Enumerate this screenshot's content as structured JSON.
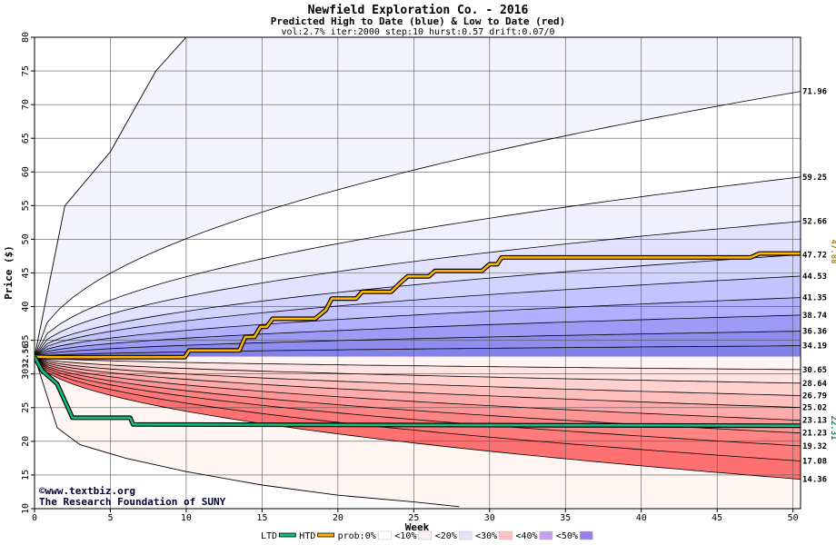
{
  "chart_data": {
    "type": "area",
    "title": "Newfield Exploration Co. - 2016",
    "subtitle": "Predicted High to Date (blue) &  Low to Date (red)",
    "params": "vol:2.7% iter:2000 step:10 hurst:0.57 drift:0.07/0",
    "xlabel": "Week",
    "ylabel": "Price ($)",
    "xlim": [
      0,
      50.5
    ],
    "ylim": [
      10,
      80
    ],
    "xticks": [
      0,
      5,
      10,
      15,
      20,
      25,
      30,
      35,
      40,
      45,
      50
    ],
    "yticks": [
      10,
      15,
      20,
      25,
      30,
      35,
      40,
      45,
      50,
      55,
      60,
      65,
      70,
      75,
      80
    ],
    "grid": true,
    "start_price": 32.56,
    "start_label": "32.56",
    "high_bands_end": [
      34.19,
      36.36,
      38.74,
      41.35,
      44.53,
      47.72,
      52.66,
      59.25,
      71.96
    ],
    "high_band_labels": [
      "34.19",
      "36.36",
      "38.74",
      "41.35",
      "44.53",
      "47.72",
      "52.66",
      "59.25",
      "71.96"
    ],
    "low_bands_end": [
      30.65,
      28.64,
      26.79,
      25.02,
      23.13,
      21.23,
      19.32,
      17.08,
      14.36
    ],
    "low_band_labels": [
      "30.65",
      "28.64",
      "26.79",
      "25.02",
      "23.13",
      "21.23",
      "19.32",
      "17.08",
      "14.36"
    ],
    "high_to_date_end": 47.88,
    "high_to_date_label": "47.88",
    "low_to_date_end": 22.31,
    "low_to_date_label": "22.31",
    "outer_high_curve": [
      [
        0,
        32.56
      ],
      [
        2,
        55
      ],
      [
        5,
        63
      ],
      [
        8,
        75
      ],
      [
        10,
        80
      ]
    ],
    "outer_low_curve": [
      [
        0,
        32.56
      ],
      [
        1.5,
        22
      ],
      [
        3,
        19.5
      ],
      [
        6,
        17.5
      ],
      [
        10,
        15.5
      ],
      [
        15,
        13.5
      ],
      [
        20,
        12
      ],
      [
        25,
        11
      ],
      [
        28,
        10.3
      ]
    ],
    "high_to_date_series": [
      [
        0,
        32.56
      ],
      [
        1,
        32.5
      ],
      [
        9.9,
        32.5
      ],
      [
        10.2,
        33.5
      ],
      [
        13.5,
        33.5
      ],
      [
        13.9,
        35.5
      ],
      [
        14.5,
        35.5
      ],
      [
        14.9,
        37
      ],
      [
        15.3,
        37
      ],
      [
        15.7,
        38.2
      ],
      [
        18.5,
        38.2
      ],
      [
        19.2,
        39.5
      ],
      [
        19.6,
        41.2
      ],
      [
        21.2,
        41.2
      ],
      [
        21.6,
        42.2
      ],
      [
        23.5,
        42.2
      ],
      [
        24.1,
        43.5
      ],
      [
        24.6,
        44.5
      ],
      [
        26,
        44.5
      ],
      [
        26.4,
        45.3
      ],
      [
        29.5,
        45.3
      ],
      [
        30,
        46.3
      ],
      [
        30.5,
        46.3
      ],
      [
        30.8,
        47.3
      ],
      [
        47.2,
        47.3
      ],
      [
        47.8,
        47.88
      ],
      [
        50.5,
        47.88
      ]
    ],
    "low_to_date_series": [
      [
        0,
        32.56
      ],
      [
        0.5,
        30.5
      ],
      [
        1,
        29.5
      ],
      [
        1.5,
        28.5
      ],
      [
        2,
        26
      ],
      [
        2.5,
        23.5
      ],
      [
        6.3,
        23.5
      ],
      [
        6.5,
        22.5
      ],
      [
        50.5,
        22.31
      ]
    ],
    "high_band_colors": [
      "#ffffff",
      "#f0f0ff",
      "#e2e2ff",
      "#d3d3ff",
      "#c3c3ff",
      "#b0b0ff",
      "#9c9cf6",
      "#8e8ef0",
      "#8282ea"
    ],
    "low_band_colors": [
      "#fff4f2",
      "#ffe4e2",
      "#ffd2d0",
      "#ffbfbd",
      "#ffabab",
      "#ff9696",
      "#ff8585",
      "#ff7a7a",
      "#ff7070"
    ],
    "high_to_date_color": "#ffb400",
    "low_to_date_color": "#10c080",
    "credit_line1": "www.textbiz.org",
    "credit_line2": "The Research Foundation of SUNY",
    "legend": [
      {
        "label": "LTD",
        "color": "#10c080",
        "kind": "line"
      },
      {
        "label": "HTD",
        "color": "#ffb400",
        "kind": "line"
      },
      {
        "label": "prob:0%",
        "color": "#ffffff",
        "kind": "swatch"
      },
      {
        "label": "<10%",
        "color": "#fff0f0",
        "kind": "swatch"
      },
      {
        "label": "<20%",
        "color": "#e2e2ff",
        "kind": "swatch"
      },
      {
        "label": "<30%",
        "color": "#ffc0c0",
        "kind": "swatch"
      },
      {
        "label": "<40%",
        "color": "#c8a0f0",
        "kind": "swatch"
      },
      {
        "label": "<50%",
        "color": "#9a7af0",
        "kind": "swatch"
      }
    ]
  }
}
